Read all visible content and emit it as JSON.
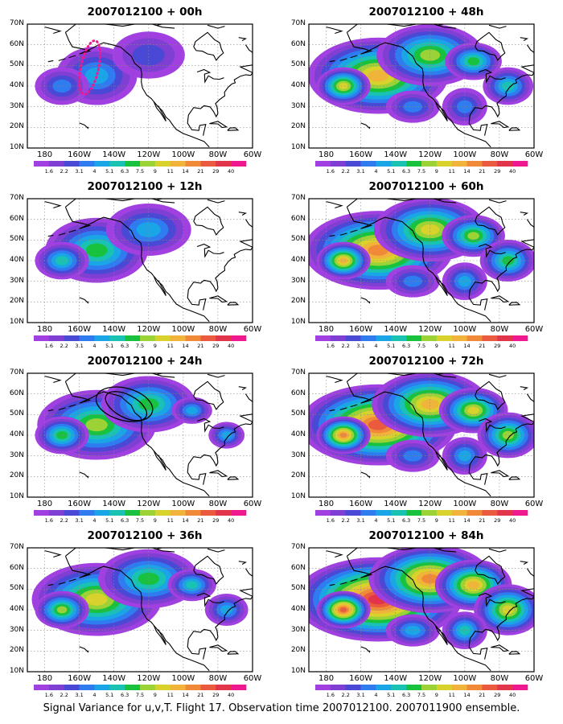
{
  "figure": {
    "caption": "Signal Variance for u,v,T. Flight 17. Observation time 2007012100. 2007011900 ensemble.",
    "lat_labels": [
      "70N",
      "60N",
      "50N",
      "40N",
      "30N",
      "20N",
      "10N"
    ],
    "lon_labels": [
      "180",
      "160W",
      "140W",
      "120W",
      "100W",
      "80W",
      "60W"
    ],
    "colorbar": {
      "values": [
        "1.6",
        "2.2",
        "3.1",
        "4",
        "5.1",
        "6.3",
        "7.5",
        "9",
        "11",
        "14",
        "21",
        "29",
        "40"
      ],
      "colors": [
        "#a040e0",
        "#7f3fd2",
        "#4a49d6",
        "#2f7cf0",
        "#1aa6e6",
        "#19c2b2",
        "#18c23e",
        "#9bd236",
        "#d9d12c",
        "#f0b43a",
        "#f08a38",
        "#ea5a3e",
        "#e2344a",
        "#f0188e"
      ]
    },
    "panels": [
      {
        "id": "p00",
        "title": "2007012100 + 00h",
        "intensity": 0.15,
        "annotation": "dotted-region"
      },
      {
        "id": "p12",
        "title": "2007012100 + 12h",
        "intensity": 0.35,
        "annotation": ""
      },
      {
        "id": "p24",
        "title": "2007012100 + 24h",
        "intensity": 0.5,
        "annotation": "ellipses"
      },
      {
        "id": "p36",
        "title": "2007012100 + 36h",
        "intensity": 0.6,
        "annotation": ""
      },
      {
        "id": "p48",
        "title": "2007012100 + 48h",
        "intensity": 0.7,
        "annotation": ""
      },
      {
        "id": "p60",
        "title": "2007012100 + 60h",
        "intensity": 0.78,
        "annotation": ""
      },
      {
        "id": "p72",
        "title": "2007012100 + 72h",
        "intensity": 0.85,
        "annotation": ""
      },
      {
        "id": "p84",
        "title": "2007012100 + 84h",
        "intensity": 0.95,
        "annotation": ""
      }
    ]
  }
}
